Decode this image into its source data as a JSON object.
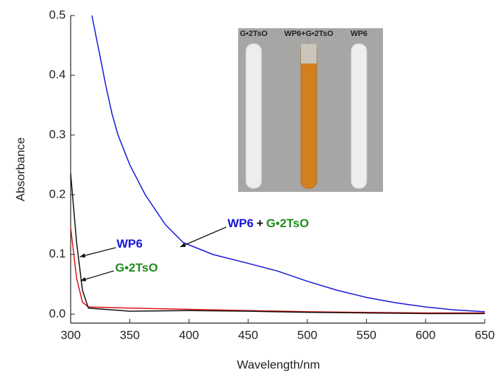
{
  "chart_data": {
    "type": "line",
    "xlabel": "Wavelength/nm",
    "ylabel": "Absorbance",
    "xlim": [
      300,
      650
    ],
    "ylim": [
      -0.015,
      0.5
    ],
    "xticks": [
      300,
      350,
      400,
      450,
      500,
      550,
      600,
      650
    ],
    "yticks": [
      {
        "value": 0,
        "label": "0.0"
      },
      0.1,
      0.2,
      0.3,
      0.4,
      0.5
    ],
    "series": [
      {
        "color": "#1515d8",
        "x": [
          318,
          322,
          325,
          330,
          335,
          340,
          350,
          363,
          380,
          395,
          420,
          450,
          475,
          500,
          525,
          550,
          575,
          600,
          625,
          650
        ],
        "values": [
          0.5,
          0.46,
          0.43,
          0.38,
          0.335,
          0.3,
          0.25,
          0.2,
          0.15,
          0.12,
          0.1,
          0.085,
          0.072,
          0.055,
          0.04,
          0.028,
          0.019,
          0.012,
          0.007,
          0.004
        ]
      },
      {
        "color": "#e01010",
        "x": [
          300,
          305,
          310,
          315,
          350,
          400,
          450,
          500,
          550,
          600,
          650
        ],
        "values": [
          0.145,
          0.06,
          0.02,
          0.012,
          0.01,
          0.008,
          0.006,
          0.004,
          0.003,
          0.002,
          0.002
        ]
      },
      {
        "color": "#111111",
        "x": [
          300,
          305,
          310,
          315,
          350,
          400,
          450,
          500,
          550,
          600,
          650
        ],
        "values": [
          0.235,
          0.12,
          0.04,
          0.01,
          0.005,
          0.006,
          0.005,
          0.003,
          0.002,
          0.001,
          0.001
        ]
      }
    ],
    "annotations": [
      {
        "parts": [
          {
            "text": "WP6",
            "color": "#1515d8"
          }
        ]
      },
      {
        "parts": [
          {
            "text": "G•2TsO",
            "color": "#1f8c1f"
          }
        ]
      },
      {
        "parts": [
          {
            "text": "WP6",
            "color": "#1515d8"
          },
          {
            "text": "+",
            "color": "#111111"
          },
          {
            "text": "G•2TsO",
            "color": "#1f8c1f"
          }
        ]
      }
    ],
    "inset_labels": [
      {
        "text": "G•2TsO",
        "color": "#1f8c1f"
      },
      {
        "text": "WP6+G•2TsO",
        "color": "#1515d8"
      },
      {
        "text": "WP6",
        "color": "#1515d8"
      }
    ]
  }
}
